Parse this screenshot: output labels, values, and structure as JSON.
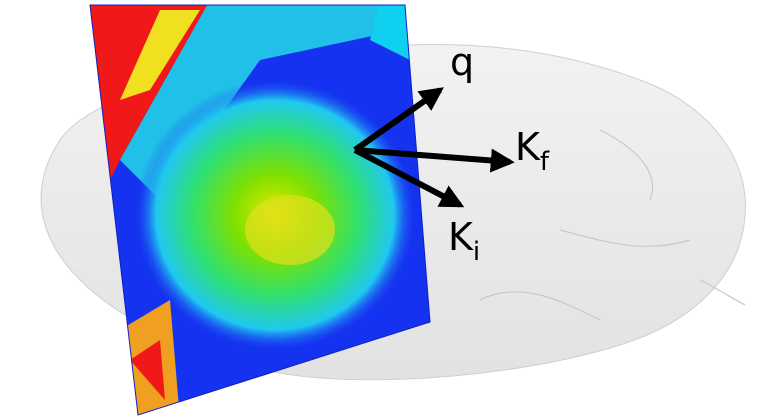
{
  "labels": [
    {
      "main": "q"
    },
    {
      "main": "K",
      "sub": "f"
    },
    {
      "main": "K",
      "sub": "i"
    }
  ]
}
